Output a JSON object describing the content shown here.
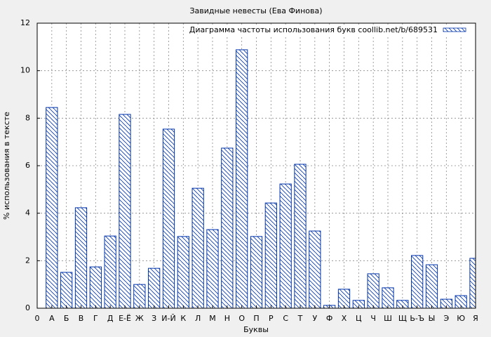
{
  "chart_data": {
    "type": "bar",
    "title": "Завидные невесты (Ева Финова)",
    "legend_label": "Диаграмма частоты использования букв coollib.net/b/689531",
    "legend_position": "upper right",
    "xlabel": "Буквы",
    "ylabel": "% использования в тексте",
    "color": "#0033aa",
    "grid": true,
    "x": [
      1,
      2,
      3,
      4,
      5,
      6,
      7,
      8,
      9,
      10,
      11,
      12,
      13,
      14,
      15,
      16,
      17,
      18,
      19,
      20,
      21,
      22,
      23,
      24,
      25,
      26,
      27,
      28,
      29,
      30
    ],
    "values": [
      8.45,
      1.51,
      4.23,
      1.74,
      3.04,
      8.16,
      1.0,
      1.68,
      7.54,
      3.02,
      5.05,
      3.31,
      6.74,
      10.88,
      3.02,
      4.43,
      5.23,
      6.06,
      3.25,
      0.12,
      0.8,
      0.33,
      1.45,
      0.86,
      0.33,
      2.22,
      1.83,
      0.38,
      0.53,
      2.1
    ],
    "xlim": [
      0,
      30
    ],
    "xticks": [
      0,
      {
        "value": 1,
        "label": "А"
      },
      {
        "value": 2,
        "label": "Б"
      },
      {
        "value": 3,
        "label": "В"
      },
      {
        "value": 4,
        "label": "Г"
      },
      {
        "value": 5,
        "label": "Д"
      },
      {
        "value": 6,
        "label": "Е-Ё"
      },
      {
        "value": 7,
        "label": "Ж"
      },
      {
        "value": 8,
        "label": "З"
      },
      {
        "value": 9,
        "label": "И-Й"
      },
      {
        "value": 10,
        "label": "К"
      },
      {
        "value": 11,
        "label": "Л"
      },
      {
        "value": 12,
        "label": "М"
      },
      {
        "value": 13,
        "label": "Н"
      },
      {
        "value": 14,
        "label": "О"
      },
      {
        "value": 15,
        "label": "П"
      },
      {
        "value": 16,
        "label": "Р"
      },
      {
        "value": 17,
        "label": "С"
      },
      {
        "value": 18,
        "label": "Т"
      },
      {
        "value": 19,
        "label": "У"
      },
      {
        "value": 20,
        "label": "Ф"
      },
      {
        "value": 21,
        "label": "Х"
      },
      {
        "value": 22,
        "label": "Ц"
      },
      {
        "value": 23,
        "label": "Ч"
      },
      {
        "value": 24,
        "label": "Ш"
      },
      {
        "value": 25,
        "label": "Щ"
      },
      {
        "value": 26,
        "label": "Ь-Ъ"
      },
      {
        "value": 27,
        "label": "Ы"
      },
      {
        "value": 28,
        "label": "Э"
      },
      {
        "value": 29,
        "label": "Ю"
      },
      {
        "value": 30,
        "label": "Я"
      }
    ],
    "ylim": [
      0,
      12
    ],
    "yticks": [
      0,
      2,
      4,
      6,
      8,
      10,
      12
    ]
  }
}
